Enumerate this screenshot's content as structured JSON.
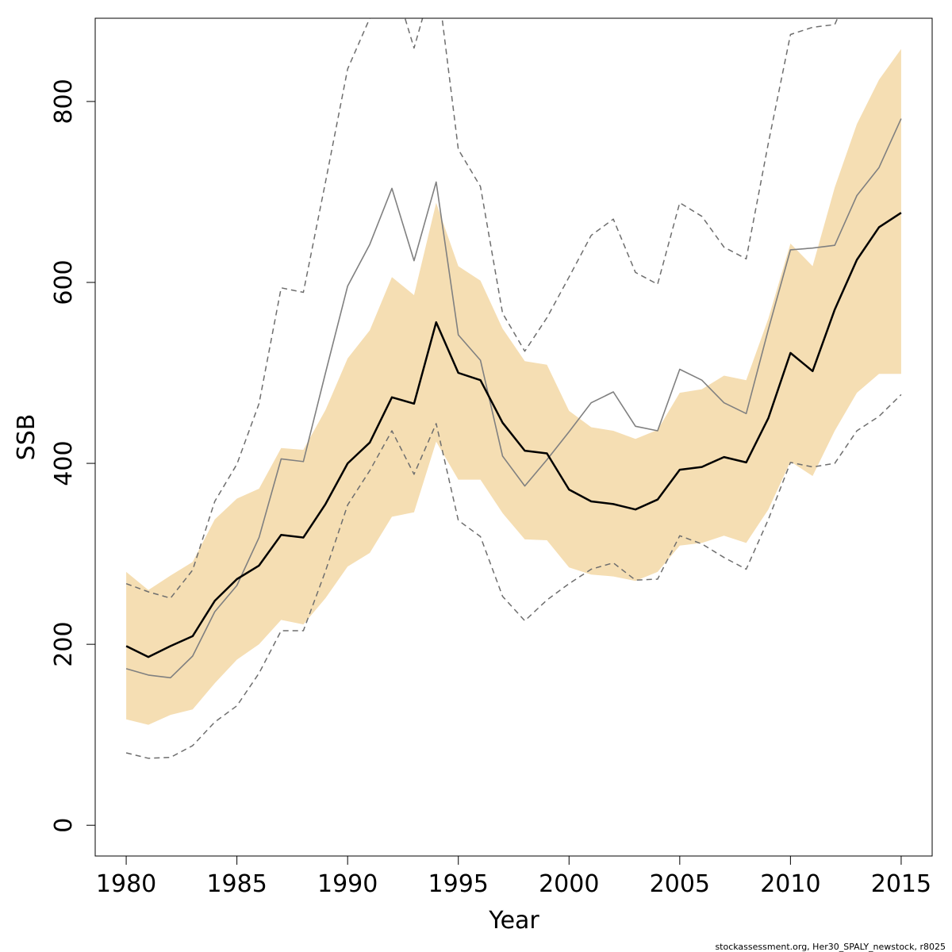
{
  "chart_data": {
    "type": "line",
    "xlabel": "Year",
    "ylabel": "SSB",
    "xlim": [
      1978.6,
      2016.4
    ],
    "ylim": [
      -34,
      892
    ],
    "x_ticks": [
      1980,
      1985,
      1990,
      1995,
      2000,
      2005,
      2010,
      2015
    ],
    "y_ticks": [
      0,
      200,
      400,
      600,
      800
    ],
    "grid": false,
    "credit": "stockassessment.org, Her30_SPALY_newstock, r8025",
    "colors": {
      "band": "#f5deb3",
      "main": "#000000",
      "alt": "#808080",
      "alt_ci": "#6e6e6e"
    },
    "x": [
      1980,
      1981,
      1982,
      1983,
      1984,
      1985,
      1986,
      1987,
      1988,
      1989,
      1990,
      1991,
      1992,
      1993,
      1994,
      1995,
      1996,
      1997,
      1998,
      1999,
      2000,
      2001,
      2002,
      2003,
      2004,
      2005,
      2006,
      2007,
      2008,
      2009,
      2010,
      2011,
      2012,
      2013,
      2014,
      2015
    ],
    "series": [
      {
        "name": "SSB estimate",
        "style": "solid-thick",
        "values": [
          198,
          186,
          198,
          209,
          248,
          272,
          287,
          321,
          318,
          355,
          400,
          423,
          473,
          466,
          556,
          500,
          492,
          445,
          414,
          411,
          371,
          358,
          355,
          349,
          360,
          393,
          396,
          407,
          401,
          450,
          522,
          502,
          570,
          625,
          661,
          677
        ]
      },
      {
        "name": "SSB confidence band",
        "style": "band",
        "lower": [
          117,
          111,
          122,
          128,
          157,
          183,
          200,
          227,
          222,
          251,
          286,
          301,
          341,
          346,
          424,
          382,
          382,
          345,
          316,
          315,
          285,
          277,
          275,
          270,
          280,
          309,
          312,
          320,
          312,
          349,
          402,
          386,
          436,
          478,
          499,
          499
        ]
      },
      {
        "name": "SSB confidence band upper",
        "style": "band-upper",
        "upper": [
          280,
          260,
          276,
          291,
          338,
          361,
          372,
          417,
          415,
          459,
          516,
          547,
          606,
          586,
          688,
          618,
          602,
          549,
          513,
          509,
          458,
          440,
          436,
          427,
          437,
          478,
          482,
          497,
          492,
          560,
          643,
          618,
          705,
          775,
          824,
          858
        ]
      },
      {
        "name": "Alternative run",
        "style": "solid-thin",
        "values": [
          173,
          166,
          163,
          187,
          236,
          265,
          318,
          405,
          402,
          500,
          596,
          642,
          704,
          624,
          711,
          542,
          514,
          408,
          375,
          404,
          435,
          467,
          479,
          441,
          436,
          504,
          492,
          467,
          455,
          548,
          636,
          638,
          641,
          696,
          727,
          781
        ]
      },
      {
        "name": "Alternative run lower CI",
        "style": "dashed",
        "values": [
          80,
          74,
          75,
          88,
          114,
          132,
          168,
          215,
          215,
          281,
          354,
          392,
          436,
          388,
          444,
          337,
          319,
          253,
          226,
          249,
          267,
          283,
          290,
          271,
          272,
          320,
          311,
          296,
          283,
          338,
          401,
          396,
          400,
          436,
          452,
          476
        ]
      },
      {
        "name": "Alternative run upper CI",
        "style": "dashed",
        "values": [
          267,
          258,
          251,
          282,
          358,
          399,
          466,
          594,
          589,
          711,
          836,
          892,
          940,
          859,
          945,
          747,
          706,
          566,
          524,
          561,
          606,
          652,
          670,
          611,
          598,
          688,
          673,
          639,
          626,
          754,
          874,
          882,
          885,
          940,
          980,
          1020
        ]
      }
    ]
  }
}
